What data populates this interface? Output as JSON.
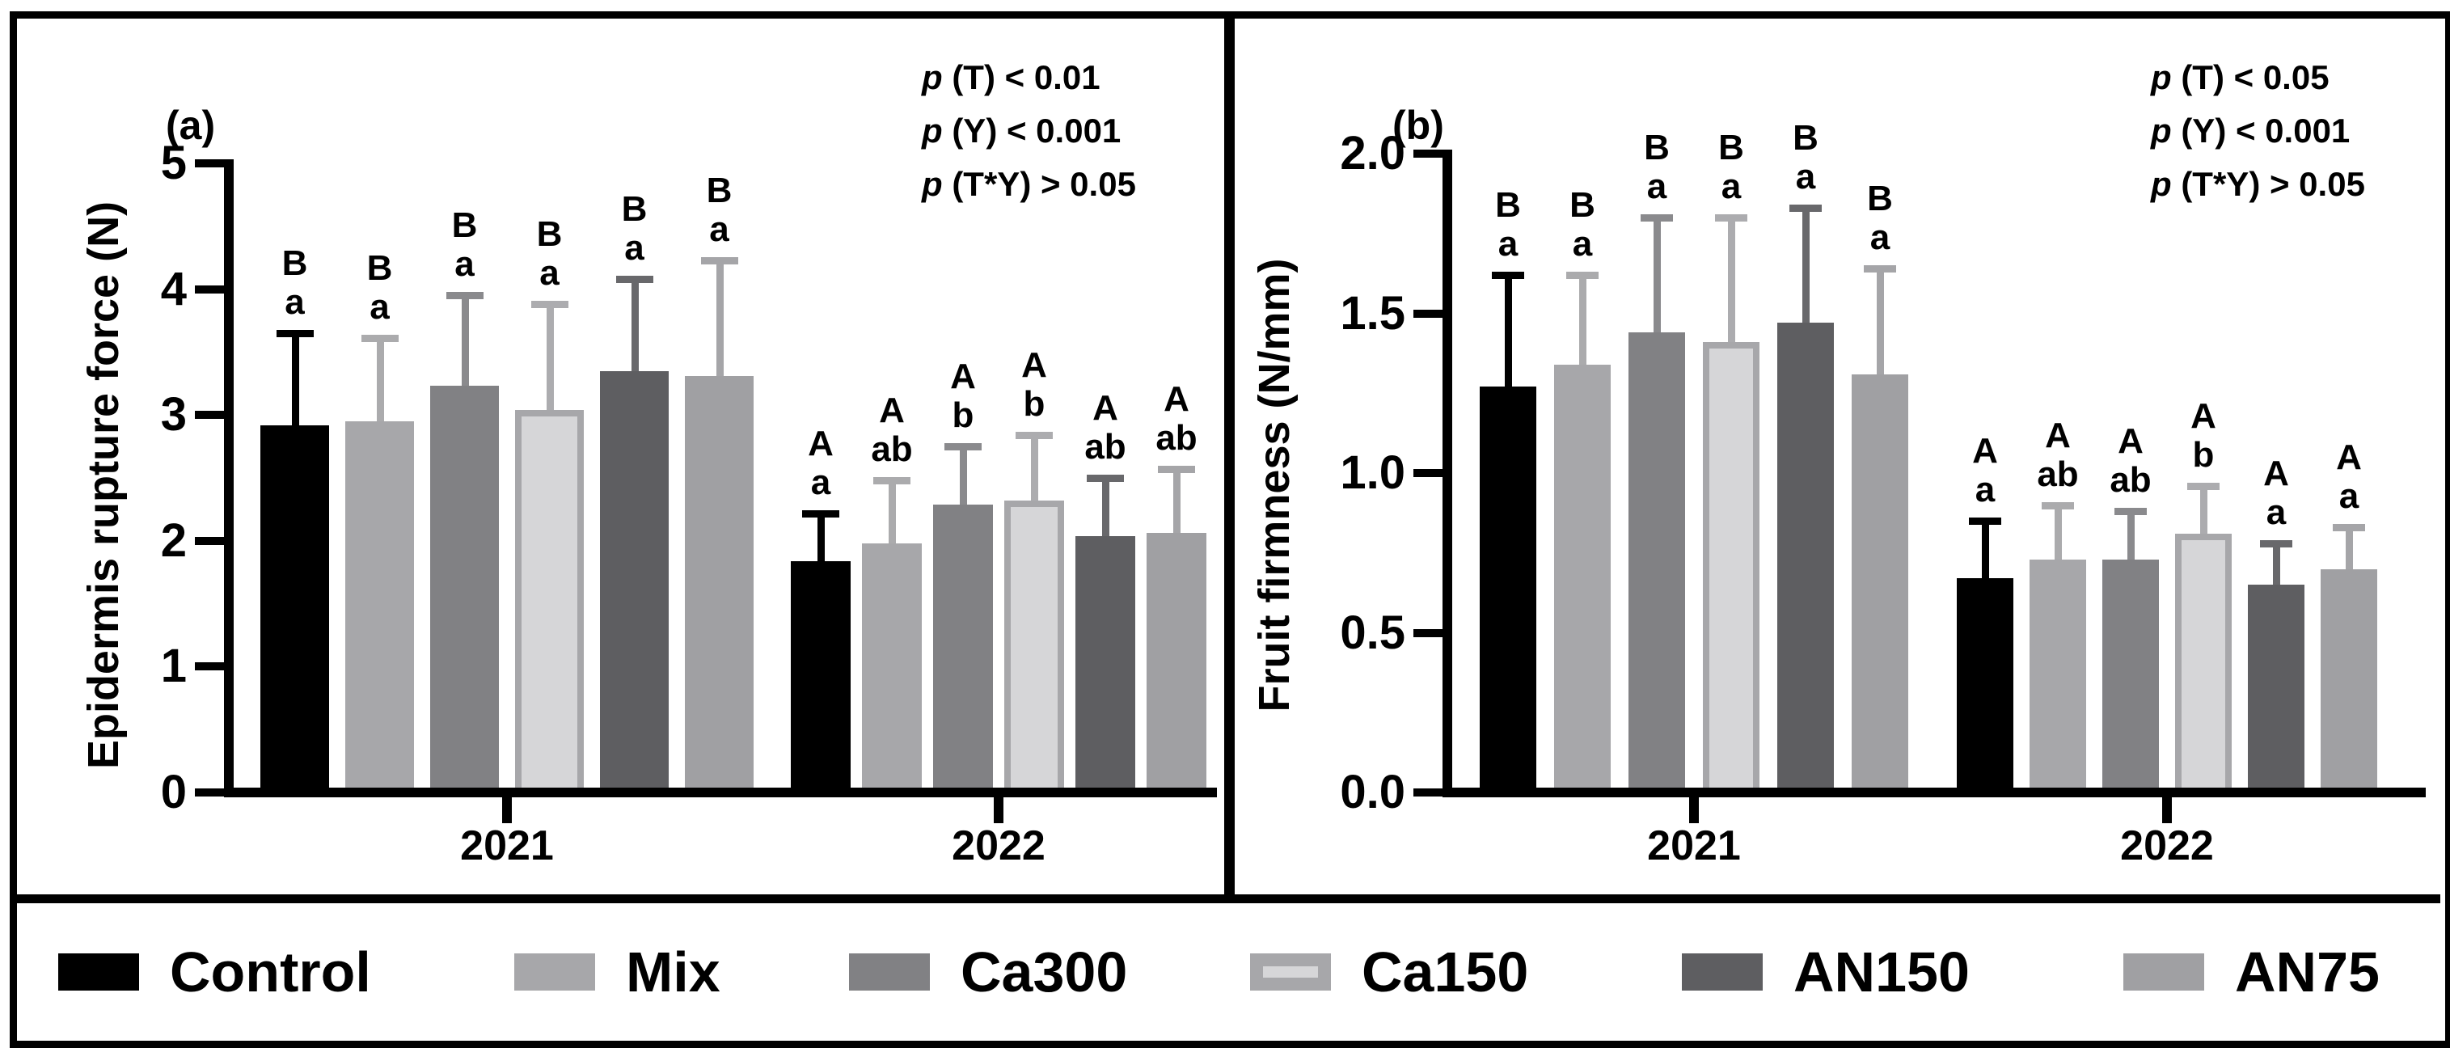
{
  "legend": {
    "items": [
      {
        "key": "control",
        "label": "Control"
      },
      {
        "key": "mix",
        "label": "Mix"
      },
      {
        "key": "ca300",
        "label": "Ca300"
      },
      {
        "key": "ca150",
        "label": "Ca150"
      },
      {
        "key": "an150",
        "label": "AN150"
      },
      {
        "key": "an75",
        "label": "AN75"
      }
    ]
  },
  "chart_data": [
    {
      "type": "bar",
      "panel_label": "(a)",
      "ylabel": "Epidermis rupture force (N)",
      "ylim": [
        0,
        5
      ],
      "yticks": [
        0,
        1,
        2,
        3,
        4,
        5
      ],
      "ytick_labels": [
        "0",
        "1",
        "2",
        "3",
        "4",
        "5"
      ],
      "categories": [
        "2021",
        "2022"
      ],
      "grid": false,
      "legend_position": "bottom",
      "annotations": [
        {
          "p": "p",
          "rest": "(T) < 0.01"
        },
        {
          "p": "p",
          "rest": "(Y) < 0.001"
        },
        {
          "p": "p",
          "rest": "(T*Y) > 0.05"
        }
      ],
      "series": [
        {
          "name": "Control",
          "fill": "#000000",
          "border": null,
          "err_color": "#000000",
          "values": [
            2.92,
            1.84
          ],
          "err_top": [
            3.65,
            2.22
          ],
          "letters": [
            [
              "B",
              "a"
            ],
            [
              "A",
              "a"
            ]
          ]
        },
        {
          "name": "Mix",
          "fill": "#A7A7AA",
          "border": null,
          "err_color": "#ABABAD",
          "values": [
            2.95,
            1.98
          ],
          "err_top": [
            3.61,
            2.48
          ],
          "letters": [
            [
              "B",
              "a"
            ],
            [
              "A",
              "ab"
            ]
          ]
        },
        {
          "name": "Ca300",
          "fill": "#818184",
          "border": null,
          "err_color": "#8A8A8D",
          "values": [
            3.23,
            2.29
          ],
          "err_top": [
            3.95,
            2.75
          ],
          "letters": [
            [
              "B",
              "a"
            ],
            [
              "A",
              "b"
            ]
          ]
        },
        {
          "name": "Ca150",
          "fill": "#D6D6D8",
          "border": "#A7A7AA",
          "err_color": "#ACACAF",
          "values": [
            3.04,
            2.32
          ],
          "err_top": [
            3.88,
            2.84
          ],
          "letters": [
            [
              "B",
              "a"
            ],
            [
              "A",
              "b"
            ]
          ]
        },
        {
          "name": "AN150",
          "fill": "#5E5E61",
          "border": null,
          "err_color": "#68686B",
          "values": [
            3.35,
            2.04
          ],
          "err_top": [
            4.08,
            2.5
          ],
          "letters": [
            [
              "B",
              "a"
            ],
            [
              "A",
              "ab"
            ]
          ]
        },
        {
          "name": "AN75",
          "fill": "#A0A0A3",
          "border": null,
          "err_color": "#A5A5A8",
          "values": [
            3.31,
            2.06
          ],
          "err_top": [
            4.23,
            2.57
          ],
          "letters": [
            [
              "B",
              "a"
            ],
            [
              "A",
              "ab"
            ]
          ]
        }
      ]
    },
    {
      "type": "bar",
      "panel_label": "(b)",
      "ylabel": "Fruit firmness (N/mm)",
      "ylim": [
        0,
        2
      ],
      "yticks": [
        0,
        0.5,
        1,
        1.5,
        2
      ],
      "ytick_labels": [
        "0.0",
        "0.5",
        "1.0",
        "1.5",
        "2.0"
      ],
      "categories": [
        "2021",
        "2022"
      ],
      "grid": false,
      "legend_position": "bottom",
      "annotations": [
        {
          "p": "p",
          "rest": "(T) < 0.05"
        },
        {
          "p": "p",
          "rest": "(Y) < 0.001"
        },
        {
          "p": "p",
          "rest": "(T*Y) > 0.05"
        }
      ],
      "series": [
        {
          "name": "Control",
          "fill": "#000000",
          "border": null,
          "err_color": "#000000",
          "values": [
            1.27,
            0.67
          ],
          "err_top": [
            1.62,
            0.85
          ],
          "letters": [
            [
              "B",
              "a"
            ],
            [
              "A",
              "a"
            ]
          ]
        },
        {
          "name": "Mix",
          "fill": "#A7A7AA",
          "border": null,
          "err_color": "#ABABAD",
          "values": [
            1.34,
            0.73
          ],
          "err_top": [
            1.62,
            0.9
          ],
          "letters": [
            [
              "B",
              "a"
            ],
            [
              "A",
              "ab"
            ]
          ]
        },
        {
          "name": "Ca300",
          "fill": "#818184",
          "border": null,
          "err_color": "#8A8A8D",
          "values": [
            1.44,
            0.73
          ],
          "err_top": [
            1.8,
            0.88
          ],
          "letters": [
            [
              "B",
              "a"
            ],
            [
              "A",
              "ab"
            ]
          ]
        },
        {
          "name": "Ca150",
          "fill": "#D6D6D8",
          "border": "#A7A7AA",
          "err_color": "#ACACAF",
          "values": [
            1.41,
            0.81
          ],
          "err_top": [
            1.8,
            0.96
          ],
          "letters": [
            [
              "B",
              "a"
            ],
            [
              "A",
              "b"
            ]
          ]
        },
        {
          "name": "AN150",
          "fill": "#5E5E61",
          "border": null,
          "err_color": "#68686B",
          "values": [
            1.47,
            0.65
          ],
          "err_top": [
            1.83,
            0.78
          ],
          "letters": [
            [
              "B",
              "a"
            ],
            [
              "A",
              "a"
            ]
          ]
        },
        {
          "name": "AN75",
          "fill": "#A0A0A3",
          "border": null,
          "err_color": "#A5A5A8",
          "values": [
            1.31,
            0.7
          ],
          "err_top": [
            1.64,
            0.83
          ],
          "letters": [
            [
              "B",
              "a"
            ],
            [
              "A",
              "a"
            ]
          ]
        }
      ]
    }
  ]
}
